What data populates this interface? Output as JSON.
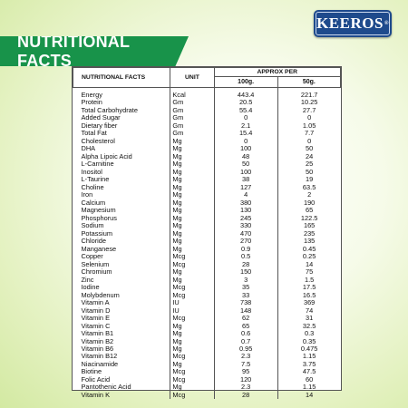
{
  "brand": {
    "name": "KEEROS",
    "mark": "®"
  },
  "banner": {
    "title": "NUTRITIONAL FACTS"
  },
  "table": {
    "headers": {
      "name": "NUTRITIONAL FACTS",
      "unit": "UNIT",
      "approx": "APPROX PER",
      "col1": "100g.",
      "col2": "50g."
    },
    "rows": [
      {
        "name": "Energy",
        "unit": "Kcal",
        "v100": "443.4",
        "v50": "221.7"
      },
      {
        "name": "Protein",
        "unit": "Gm",
        "v100": "20.5",
        "v50": "10.25"
      },
      {
        "name": "Total Carbohydrate",
        "unit": "Gm",
        "v100": "55.4",
        "v50": "27.7"
      },
      {
        "name": "Added Sugar",
        "unit": "Gm",
        "v100": "0",
        "v50": "0"
      },
      {
        "name": "Dietary fiber",
        "unit": "Gm",
        "v100": "2.1",
        "v50": "1.05"
      },
      {
        "name": "Total Fat",
        "unit": "Gm",
        "v100": "15.4",
        "v50": "7.7"
      },
      {
        "name": "Cholesterol",
        "unit": "Mg",
        "v100": "0",
        "v50": "0"
      },
      {
        "name": "DHA",
        "unit": "Mg",
        "v100": "100",
        "v50": "50"
      },
      {
        "name": "Alpha Lipoic Acid",
        "unit": "Mg",
        "v100": "48",
        "v50": "24"
      },
      {
        "name": "L-Carnitine",
        "unit": "Mg",
        "v100": "50",
        "v50": "25"
      },
      {
        "name": "Inositol",
        "unit": "Mg",
        "v100": "100",
        "v50": "50"
      },
      {
        "name": "L-Taurine",
        "unit": "Mg",
        "v100": "38",
        "v50": "19"
      },
      {
        "name": "Choline",
        "unit": "Mg",
        "v100": "127",
        "v50": "63.5"
      },
      {
        "name": "Iron",
        "unit": "Mg",
        "v100": "4",
        "v50": "2"
      },
      {
        "name": "Calcium",
        "unit": "Mg",
        "v100": "380",
        "v50": "190"
      },
      {
        "name": "Magnesium",
        "unit": "Mg",
        "v100": "130",
        "v50": "65"
      },
      {
        "name": "Phosphorus",
        "unit": "Mg",
        "v100": "245",
        "v50": "122.5"
      },
      {
        "name": "Sodium",
        "unit": "Mg",
        "v100": "330",
        "v50": "165"
      },
      {
        "name": "Potassium",
        "unit": "Mg",
        "v100": "470",
        "v50": "235"
      },
      {
        "name": "Chloride",
        "unit": "Mg",
        "v100": "270",
        "v50": "135"
      },
      {
        "name": "Manganese",
        "unit": "Mg",
        "v100": "0.9",
        "v50": "0.45"
      },
      {
        "name": "Copper",
        "unit": "Mcg",
        "v100": "0.5",
        "v50": "0.25"
      },
      {
        "name": "Selenium",
        "unit": "Mcg",
        "v100": "28",
        "v50": "14"
      },
      {
        "name": "Chromium",
        "unit": "Mg",
        "v100": "150",
        "v50": "75"
      },
      {
        "name": "Zinc",
        "unit": "Mg",
        "v100": "3",
        "v50": "1.5"
      },
      {
        "name": "Iodine",
        "unit": "Mcg",
        "v100": "35",
        "v50": "17.5"
      },
      {
        "name": "Molybdenum",
        "unit": "Mcg",
        "v100": "33",
        "v50": "16.5"
      },
      {
        "name": "Vitamin A",
        "unit": "IU",
        "v100": "738",
        "v50": "369"
      },
      {
        "name": "Vitamin D",
        "unit": "IU",
        "v100": "148",
        "v50": "74"
      },
      {
        "name": "Vitamin E",
        "unit": "Mcg",
        "v100": "62",
        "v50": "31"
      },
      {
        "name": "Vitamin C",
        "unit": "Mg",
        "v100": "65",
        "v50": "32.5"
      },
      {
        "name": "Vitamin B1",
        "unit": "Mg",
        "v100": "0.6",
        "v50": "0.3"
      },
      {
        "name": "Vitamin B2",
        "unit": "Mg",
        "v100": "0.7",
        "v50": "0.35"
      },
      {
        "name": "Vitamin B6",
        "unit": "Mg",
        "v100": "0.95",
        "v50": "0.475"
      },
      {
        "name": "Vitamin B12",
        "unit": "Mcg",
        "v100": "2.3",
        "v50": "1.15"
      },
      {
        "name": "Niacinamide",
        "unit": "Mg",
        "v100": "7.5",
        "v50": "3.75"
      },
      {
        "name": "Biotine",
        "unit": "Mcg",
        "v100": "95",
        "v50": "47.5"
      },
      {
        "name": "Folic Acid",
        "unit": "Mcg",
        "v100": "120",
        "v50": "60"
      },
      {
        "name": "Pantothenic Acid",
        "unit": "Mg",
        "v100": "2.3",
        "v50": "1.15"
      },
      {
        "name": "Vitamin K",
        "unit": "Mcg",
        "v100": "28",
        "v50": "14"
      }
    ]
  }
}
